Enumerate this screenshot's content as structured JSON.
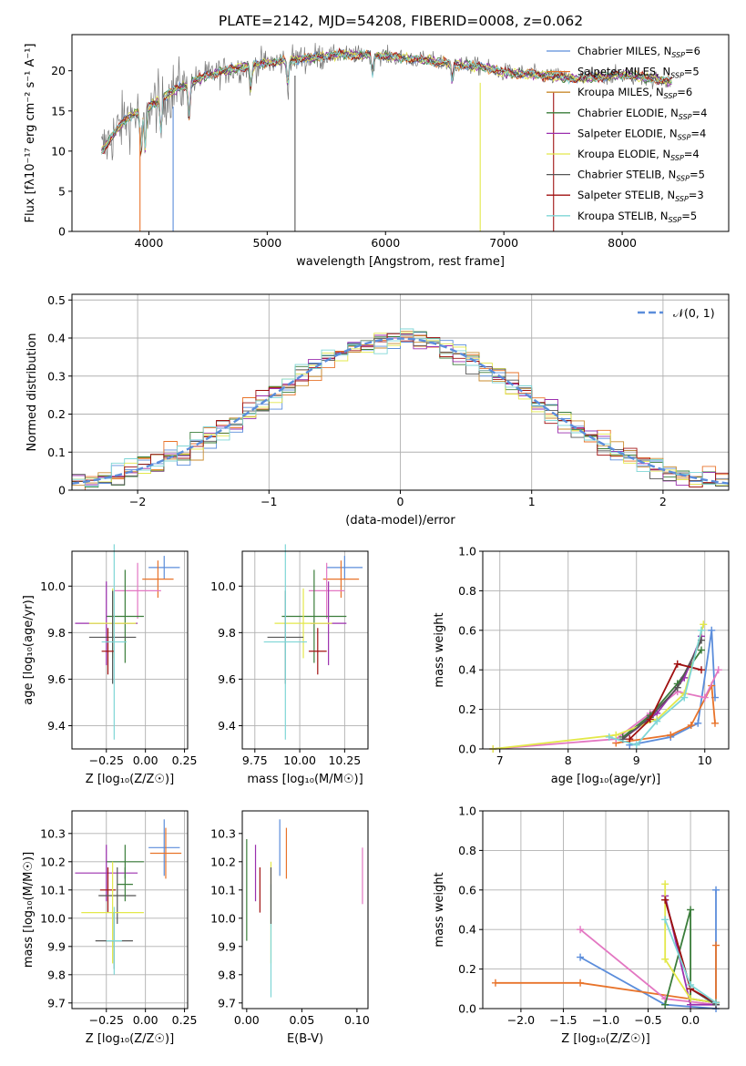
{
  "figure_title": "PLATE=2142, MJD=54208, FIBERID=0008, z=0.062",
  "colors": {
    "chabrier_miles": "#5b8ddb",
    "salpeter_miles": "#e8732a",
    "kroupa_miles": "#c98b2e",
    "chabrier_elodie": "#3a7d3a",
    "salpeter_elodie": "#9b2fae",
    "kroupa_elodie": "#e3e84a",
    "chabrier_stelib": "#555555",
    "salpeter_stelib": "#a01010",
    "kroupa_stelib": "#7fd6d6",
    "pink": "#e377c2",
    "data": "#777777",
    "normal_curve": "#5b8ddb",
    "grid": "#b0b0b0"
  },
  "chart_data": [
    {
      "id": "spectrum",
      "type": "line",
      "title": "PLATE=2142, MJD=54208, FIBERID=0008, z=0.062",
      "xlabel": "wavelength [Angstrom, rest frame]",
      "ylabel": "Flux [fλ10⁻¹⁷ erg cm⁻² s⁻¹ A⁻¹]",
      "xlim": [
        3350,
        8900
      ],
      "ylim": [
        0,
        24.5
      ],
      "xticks": [
        4000,
        5000,
        6000,
        7000,
        8000
      ],
      "yticks": [
        0,
        5,
        10,
        15,
        20
      ],
      "grid": false,
      "legend_position": "upper-right",
      "continuum": {
        "x": [
          3600,
          3800,
          4000,
          4200,
          4500,
          4800,
          5000,
          5300,
          5600,
          5900,
          6200,
          6500,
          6800,
          7000,
          7300,
          7600,
          8000,
          8400
        ],
        "y": [
          10,
          14,
          15.5,
          17.5,
          19.5,
          20.5,
          21,
          21.5,
          22,
          22,
          21.5,
          21,
          20.5,
          19.8,
          19.5,
          19,
          19.5,
          18.7
        ]
      },
      "series": [
        {
          "name": "Chabrier MILES, N",
          "sub": "SSP",
          "suffix": "=6",
          "color_key": "chabrier_miles"
        },
        {
          "name": "Salpeter MILES, N",
          "sub": "SSP",
          "suffix": "=5",
          "color_key": "salpeter_miles"
        },
        {
          "name": "Kroupa MILES, N",
          "sub": "SSP",
          "suffix": "=6",
          "color_key": "kroupa_miles"
        },
        {
          "name": "Chabrier ELODIE, N",
          "sub": "SSP",
          "suffix": "=4",
          "color_key": "chabrier_elodie"
        },
        {
          "name": "Salpeter ELODIE, N",
          "sub": "SSP",
          "suffix": "=4",
          "color_key": "salpeter_elodie"
        },
        {
          "name": "Kroupa ELODIE, N",
          "sub": "SSP",
          "suffix": "=4",
          "color_key": "kroupa_elodie"
        },
        {
          "name": "Chabrier STELIB, N",
          "sub": "SSP",
          "suffix": "=5",
          "color_key": "chabrier_stelib"
        },
        {
          "name": "Salpeter STELIB, N",
          "sub": "SSP",
          "suffix": "=3",
          "color_key": "salpeter_stelib"
        },
        {
          "name": "Kroupa STELIB, N",
          "sub": "SSP",
          "suffix": "=5",
          "color_key": "kroupa_stelib"
        }
      ]
    },
    {
      "id": "residuals",
      "type": "line",
      "title": "",
      "xlabel": "(data-model)/error",
      "ylabel": "Normed distribution",
      "xlim": [
        -2.5,
        2.5
      ],
      "ylim": [
        0,
        0.515
      ],
      "xticks": [
        -2,
        -1,
        0,
        1,
        2
      ],
      "yticks": [
        0.0,
        0.1,
        0.2,
        0.3,
        0.4,
        0.5
      ],
      "grid": true,
      "legend_position": "upper-right",
      "legend": "𝒩(0, 1)",
      "bin_width": 0.1
    },
    {
      "id": "age_vs_Z",
      "type": "scatter",
      "title": "",
      "xlabel": "Z [log₁₀(Z/Z☉)]",
      "ylabel": "age  [log₁₀(age/yr)]",
      "xlim": [
        -0.47,
        0.27
      ],
      "ylim": [
        9.3,
        10.15
      ],
      "xticks": [
        -0.25,
        0.0,
        0.25
      ],
      "xticklabels": [
        "−0.25",
        "0.00",
        "0.25"
      ],
      "yticks": [
        9.4,
        9.6,
        9.8,
        10.0
      ],
      "yticklabels": [
        "9.4",
        "9.6",
        "9.8",
        "10.0"
      ],
      "grid": true,
      "points": [
        {
          "c": "chabrier_miles",
          "x": 0.12,
          "xerr": 0.1,
          "y": 10.08,
          "yerr": 0.05
        },
        {
          "c": "salpeter_miles",
          "x": 0.08,
          "xerr": 0.1,
          "y": 10.03,
          "yerr": 0.08
        },
        {
          "c": "pink",
          "x": -0.05,
          "xerr": 0.15,
          "y": 9.98,
          "yerr": 0.12
        },
        {
          "c": "chabrier_elodie",
          "x": -0.13,
          "xerr": 0.12,
          "y": 9.87,
          "yerr": 0.2
        },
        {
          "c": "salpeter_elodie",
          "x": -0.25,
          "xerr": 0.2,
          "y": 9.84,
          "yerr": 0.18
        },
        {
          "c": "kroupa_elodie",
          "x": -0.21,
          "xerr": 0.15,
          "y": 9.84,
          "yerr": 0.15
        },
        {
          "c": "chabrier_stelib",
          "x": -0.21,
          "xerr": 0.15,
          "y": 9.78,
          "yerr": 0.2
        },
        {
          "c": "salpeter_stelib",
          "x": -0.24,
          "xerr": 0.04,
          "y": 9.72,
          "yerr": 0.1
        },
        {
          "c": "kroupa_stelib",
          "x": -0.2,
          "xerr": 0.08,
          "y": 9.76,
          "yerr": 0.42
        }
      ]
    },
    {
      "id": "age_vs_mass",
      "type": "scatter",
      "title": "",
      "xlabel": "mass [log₁₀(M/M☉)]",
      "ylabel": "",
      "xlim": [
        9.68,
        10.38
      ],
      "ylim": [
        9.3,
        10.15
      ],
      "xticks": [
        9.75,
        10.0,
        10.25
      ],
      "xticklabels": [
        "9.75",
        "10.00",
        "10.25"
      ],
      "yticks": [
        9.4,
        9.6,
        9.8,
        10.0
      ],
      "yticklabels": [
        "9.4",
        "9.6",
        "9.8",
        "10.0"
      ],
      "grid": true,
      "points": [
        {
          "c": "chabrier_miles",
          "x": 10.25,
          "xerr": 0.1,
          "y": 10.08,
          "yerr": 0.05
        },
        {
          "c": "salpeter_miles",
          "x": 10.23,
          "xerr": 0.1,
          "y": 10.03,
          "yerr": 0.08
        },
        {
          "c": "pink",
          "x": 10.15,
          "xerr": 0.1,
          "y": 9.98,
          "yerr": 0.12
        },
        {
          "c": "chabrier_elodie",
          "x": 10.08,
          "xerr": 0.18,
          "y": 9.87,
          "yerr": 0.2
        },
        {
          "c": "salpeter_elodie",
          "x": 10.16,
          "xerr": 0.1,
          "y": 9.84,
          "yerr": 0.18
        },
        {
          "c": "kroupa_elodie",
          "x": 10.02,
          "xerr": 0.16,
          "y": 9.84,
          "yerr": 0.15
        },
        {
          "c": "chabrier_stelib",
          "x": 9.92,
          "xerr": 0.1,
          "y": 9.78,
          "yerr": 0.2
        },
        {
          "c": "salpeter_stelib",
          "x": 10.1,
          "xerr": 0.05,
          "y": 9.72,
          "yerr": 0.1
        },
        {
          "c": "kroupa_stelib",
          "x": 9.92,
          "xerr": 0.12,
          "y": 9.76,
          "yerr": 0.42
        }
      ]
    },
    {
      "id": "mass_weight_vs_age",
      "type": "line",
      "title": "",
      "xlabel": "age  [log₁₀(age/yr)]",
      "ylabel": "mass weight",
      "xlim": [
        6.75,
        10.35
      ],
      "ylim": [
        0,
        1.0
      ],
      "xticks": [
        7,
        8,
        9,
        10
      ],
      "xticklabels": [
        "7",
        "8",
        "9",
        "10"
      ],
      "yticks": [
        0.0,
        0.2,
        0.4,
        0.6,
        0.8,
        1.0
      ],
      "yticklabels": [
        "0.0",
        "0.2",
        "0.4",
        "0.6",
        "0.8",
        "1.0"
      ],
      "grid": true,
      "series": [
        {
          "c": "chabrier_miles",
          "x": [
            8.9,
            9.5,
            9.9,
            10.1,
            10.15
          ],
          "y": [
            0.02,
            0.06,
            0.13,
            0.6,
            0.26
          ]
        },
        {
          "c": "salpeter_miles",
          "x": [
            8.7,
            9.5,
            9.8,
            10.1,
            10.15
          ],
          "y": [
            0.03,
            0.07,
            0.12,
            0.32,
            0.13
          ]
        },
        {
          "c": "pink",
          "x": [
            6.9,
            8.7,
            9.2,
            9.6,
            10.0,
            10.2
          ],
          "y": [
            0.0,
            0.05,
            0.18,
            0.29,
            0.26,
            0.4
          ]
        },
        {
          "c": "chabrier_elodie",
          "x": [
            8.8,
            9.2,
            9.6,
            9.95
          ],
          "y": [
            0.06,
            0.17,
            0.33,
            0.5
          ]
        },
        {
          "c": "salpeter_elodie",
          "x": [
            8.8,
            9.3,
            9.7,
            9.95
          ],
          "y": [
            0.05,
            0.18,
            0.36,
            0.57
          ]
        },
        {
          "c": "kroupa_elodie",
          "x": [
            6.9,
            8.7,
            9.3,
            9.7,
            9.98
          ],
          "y": [
            0.0,
            0.07,
            0.15,
            0.28,
            0.63
          ]
        },
        {
          "c": "chabrier_stelib",
          "x": [
            8.8,
            9.2,
            9.6,
            9.95
          ],
          "y": [
            0.05,
            0.16,
            0.31,
            0.55
          ]
        },
        {
          "c": "salpeter_stelib",
          "x": [
            8.9,
            9.2,
            9.6,
            9.95
          ],
          "y": [
            0.05,
            0.15,
            0.43,
            0.4
          ]
        },
        {
          "c": "kroupa_stelib",
          "x": [
            8.6,
            9.0,
            9.3,
            9.7,
            9.95
          ],
          "y": [
            0.06,
            0.02,
            0.14,
            0.26,
            0.6
          ]
        }
      ]
    },
    {
      "id": "mass_vs_Z",
      "type": "scatter",
      "title": "",
      "xlabel": "Z [log₁₀(Z/Z☉)]",
      "ylabel": "mass [log₁₀(M/M☉)]",
      "xlim": [
        -0.47,
        0.27
      ],
      "ylim": [
        9.68,
        10.38
      ],
      "xticks": [
        -0.25,
        0.0,
        0.25
      ],
      "xticklabels": [
        "−0.25",
        "0.00",
        "0.25"
      ],
      "yticks": [
        9.7,
        9.8,
        9.9,
        10.0,
        10.1,
        10.2,
        10.3
      ],
      "yticklabels": [
        "9.7",
        "9.8",
        "9.9",
        "10.0",
        "10.1",
        "10.2",
        "10.3"
      ],
      "grid": true,
      "points": [
        {
          "c": "chabrier_miles",
          "x": 0.12,
          "xerr": 0.1,
          "y": 10.25,
          "yerr": 0.1
        },
        {
          "c": "salpeter_miles",
          "x": 0.13,
          "xerr": 0.1,
          "y": 10.23,
          "yerr": 0.09
        },
        {
          "c": "chabrier_elodie",
          "x": -0.13,
          "xerr": 0.12,
          "y": 10.2,
          "yerr": 0.06
        },
        {
          "c": "salpeter_elodie",
          "x": -0.25,
          "xerr": 0.2,
          "y": 10.16,
          "yerr": 0.1
        },
        {
          "c": "salpeter_stelib",
          "x": -0.24,
          "xerr": 0.05,
          "y": 10.1,
          "yerr": 0.08
        },
        {
          "c": "chabrier_stelib",
          "x": -0.18,
          "xerr": 0.12,
          "y": 10.08,
          "yerr": 0.1
        },
        {
          "c": "kroupa_elodie",
          "x": -0.21,
          "xerr": 0.2,
          "y": 10.02,
          "yerr": 0.18
        },
        {
          "c": "chabrier_stelib",
          "x": -0.2,
          "xerr": 0.12,
          "y": 9.92,
          "yerr": 0.1
        },
        {
          "c": "kroupa_stelib",
          "x": -0.2,
          "xerr": 0.05,
          "y": 9.92,
          "yerr": 0.12
        },
        {
          "c": "chabrier_elodie",
          "x": -0.13,
          "xerr": 0.05,
          "y": 10.12,
          "yerr": 0.06
        }
      ]
    },
    {
      "id": "E_BV",
      "type": "scatter",
      "title": "",
      "xlabel": "E(B-V)",
      "ylabel": "",
      "xlim": [
        -0.004,
        0.11
      ],
      "ylim": [
        9.68,
        10.38
      ],
      "xticks": [
        0.0,
        0.05,
        0.1
      ],
      "xticklabels": [
        "0.00",
        "0.05",
        "0.10"
      ],
      "yticks": [
        9.7,
        9.8,
        9.9,
        10.0,
        10.1,
        10.2,
        10.3
      ],
      "yticklabels": [
        "9.7",
        "9.8",
        "9.9",
        "10.0",
        "10.1",
        "10.2",
        "10.3"
      ],
      "grid": false,
      "points": [
        {
          "c": "chabrier_elodie",
          "x": 0.0,
          "xerr": 0,
          "y": 10.1,
          "yerr": 0.18
        },
        {
          "c": "salpeter_elodie",
          "x": 0.008,
          "xerr": 0,
          "y": 10.16,
          "yerr": 0.1
        },
        {
          "c": "salpeter_stelib",
          "x": 0.012,
          "xerr": 0,
          "y": 10.1,
          "yerr": 0.08
        },
        {
          "c": "kroupa_elodie",
          "x": 0.022,
          "xerr": 0,
          "y": 10.02,
          "yerr": 0.18
        },
        {
          "c": "kroupa_stelib",
          "x": 0.022,
          "xerr": 0,
          "y": 9.92,
          "yerr": 0.2
        },
        {
          "c": "chabrier_stelib",
          "x": 0.022,
          "xerr": 0,
          "y": 10.08,
          "yerr": 0.1
        },
        {
          "c": "chabrier_miles",
          "x": 0.03,
          "xerr": 0,
          "y": 10.25,
          "yerr": 0.1
        },
        {
          "c": "salpeter_miles",
          "x": 0.036,
          "xerr": 0,
          "y": 10.23,
          "yerr": 0.09
        },
        {
          "c": "pink",
          "x": 0.105,
          "xerr": 0,
          "y": 10.15,
          "yerr": 0.1
        }
      ]
    },
    {
      "id": "mass_weight_vs_Z",
      "type": "line",
      "title": "",
      "xlabel": "Z [log₁₀(Z/Z☉)]",
      "ylabel": "mass weight",
      "xlim": [
        -2.45,
        0.45
      ],
      "ylim": [
        0,
        1.0
      ],
      "xticks": [
        -2.0,
        -1.5,
        -1.0,
        -0.5,
        0.0
      ],
      "xticklabels": [
        "−2.0",
        "−1.5",
        "−1.0",
        "−0.5",
        "0.0"
      ],
      "yticks": [
        0.0,
        0.2,
        0.4,
        0.6,
        0.8,
        1.0
      ],
      "yticklabels": [
        "0.0",
        "0.2",
        "0.4",
        "0.6",
        "0.8",
        "1.0"
      ],
      "grid": true,
      "series": [
        {
          "c": "chabrier_miles",
          "x": [
            -1.3,
            -0.3,
            0.3,
            0.3
          ],
          "y": [
            0.26,
            0.02,
            0.0,
            0.6
          ]
        },
        {
          "c": "salpeter_miles",
          "x": [
            -2.3,
            -1.3,
            0.3,
            0.3
          ],
          "y": [
            0.13,
            0.13,
            0.03,
            0.32
          ]
        },
        {
          "c": "pink",
          "x": [
            -1.3,
            -0.3,
            0.3
          ],
          "y": [
            0.4,
            0.05,
            0.02
          ]
        },
        {
          "c": "chabrier_elodie",
          "x": [
            -0.3,
            0.0,
            0.0,
            0.3
          ],
          "y": [
            0.02,
            0.5,
            0.05,
            0.03
          ]
        },
        {
          "c": "salpeter_elodie",
          "x": [
            -0.3,
            0.0,
            0.3
          ],
          "y": [
            0.57,
            0.02,
            0.02
          ]
        },
        {
          "c": "kroupa_elodie",
          "x": [
            -0.3,
            -0.3,
            0.0,
            0.3
          ],
          "y": [
            0.63,
            0.25,
            0.05,
            0.03
          ]
        },
        {
          "c": "chabrier_stelib",
          "x": [
            -0.3,
            0.0,
            0.3
          ],
          "y": [
            0.55,
            0.1,
            0.02
          ]
        },
        {
          "c": "salpeter_stelib",
          "x": [
            -0.3,
            0.0,
            0.3
          ],
          "y": [
            0.55,
            0.1,
            0.03
          ]
        },
        {
          "c": "kroupa_stelib",
          "x": [
            -0.3,
            0.0,
            0.3
          ],
          "y": [
            0.45,
            0.12,
            0.03
          ]
        }
      ]
    }
  ]
}
